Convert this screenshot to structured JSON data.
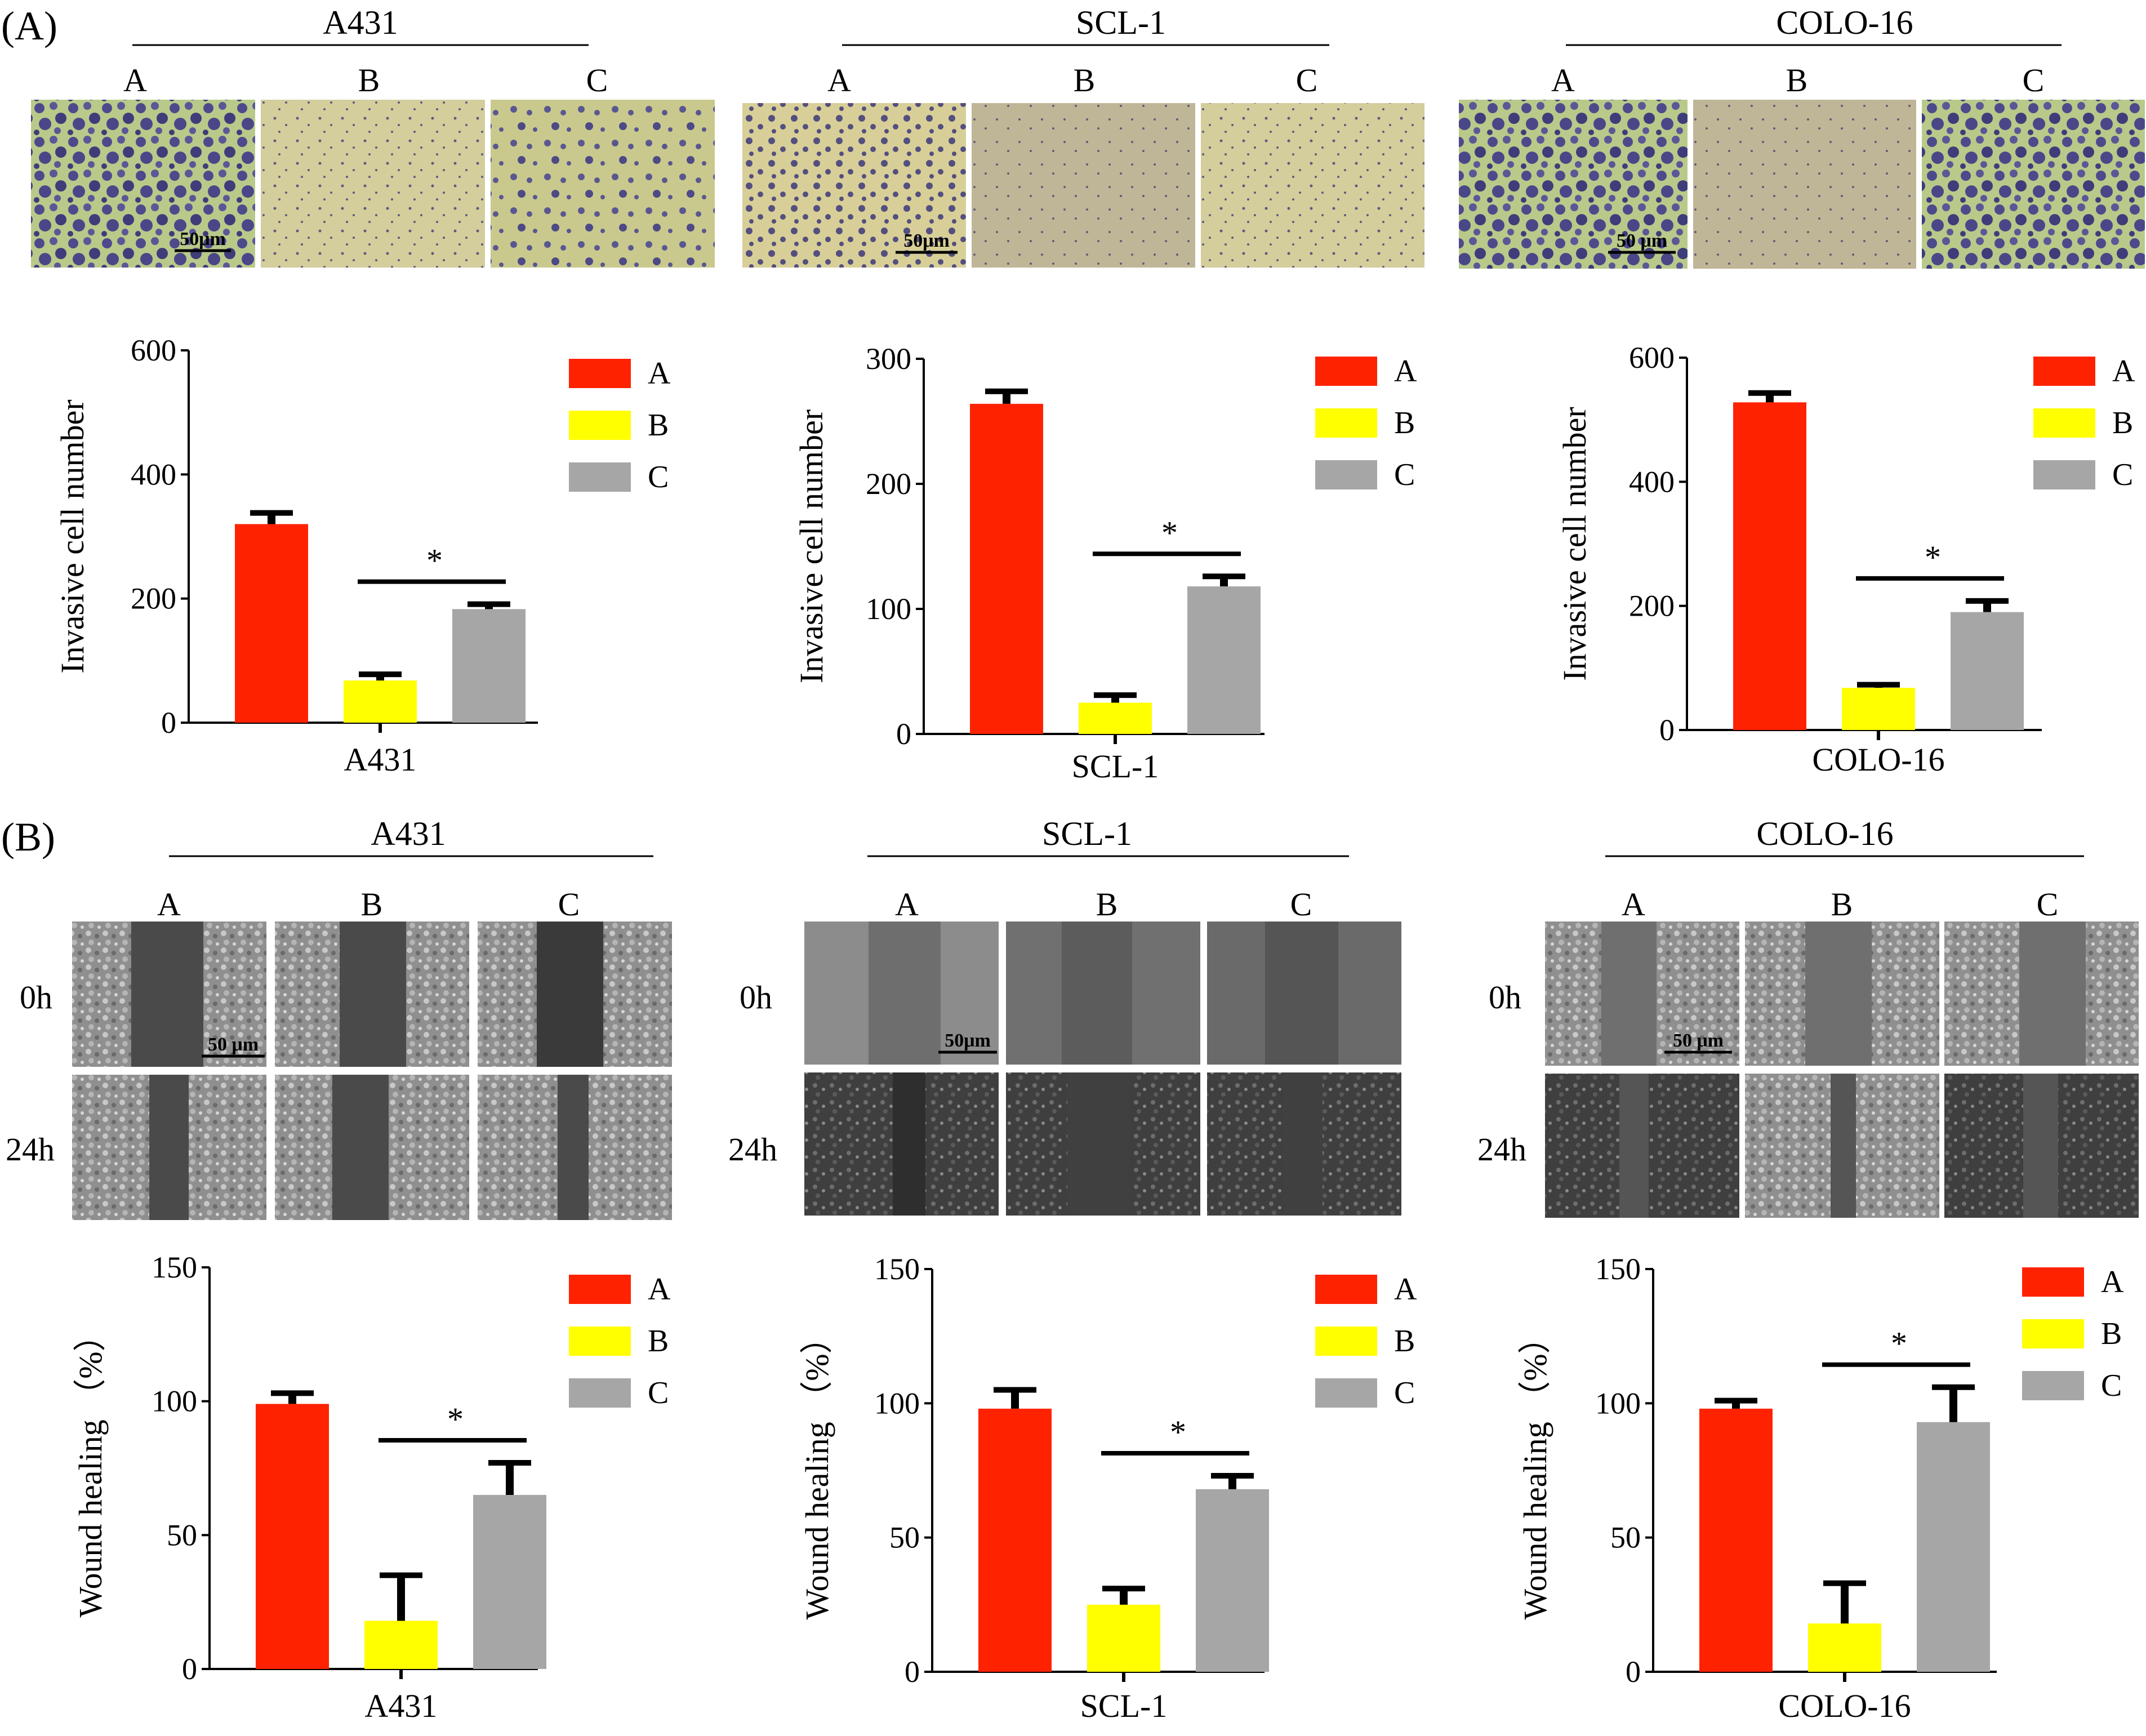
{
  "panels": [
    {
      "label": "(A)",
      "cell_lines": [
        {
          "title": "A431",
          "groups": [
            "A",
            "B",
            "C"
          ],
          "scale_bar": "50μm"
        },
        {
          "title": "SCL-1",
          "groups": [
            "A",
            "B",
            "C"
          ],
          "scale_bar": "50μm"
        },
        {
          "title": "COLO-16",
          "groups": [
            "A",
            "B",
            "C"
          ],
          "scale_bar": "50 μm"
        }
      ]
    },
    {
      "label": "(B)",
      "time_labels": [
        "0h",
        "24h"
      ],
      "cell_lines": [
        {
          "title": "A431",
          "groups": [
            "A",
            "B",
            "C"
          ],
          "scale_bar": "50 μm"
        },
        {
          "title": "SCL-1",
          "groups": [
            "A",
            "B",
            "C"
          ],
          "scale_bar": "50μm"
        },
        {
          "title": "COLO-16",
          "groups": [
            "A",
            "B",
            "C"
          ],
          "scale_bar": "50 μm"
        }
      ]
    }
  ],
  "legend": [
    "A",
    "B",
    "C"
  ],
  "colors": {
    "A": "#ff2200",
    "B": "#ffff00",
    "C": "#a6a6a6"
  },
  "chart_data": [
    {
      "type": "bar",
      "title": "",
      "xlabel": "A431",
      "ylabel": "Invasive cell number",
      "categories": [
        "A",
        "B",
        "C"
      ],
      "values": [
        320,
        68,
        183
      ],
      "errors": [
        18,
        10,
        8
      ],
      "ylim": [
        0,
        600
      ],
      "yticks": [
        0,
        200,
        400,
        600
      ],
      "significance": {
        "from": "B",
        "to": "C",
        "label": "*"
      },
      "legend": "top-right"
    },
    {
      "type": "bar",
      "title": "",
      "xlabel": "SCL-1",
      "ylabel": "Invasive cell number",
      "categories": [
        "A",
        "B",
        "C"
      ],
      "values": [
        264,
        25,
        118
      ],
      "errors": [
        10,
        6,
        8
      ],
      "ylim": [
        0,
        300
      ],
      "yticks": [
        0,
        100,
        200,
        300
      ],
      "significance": {
        "from": "B",
        "to": "C",
        "label": "*"
      },
      "legend": "top-right"
    },
    {
      "type": "bar",
      "title": "",
      "xlabel": "COLO-16",
      "ylabel": "Invasive cell number",
      "categories": [
        "A",
        "B",
        "C"
      ],
      "values": [
        528,
        68,
        190
      ],
      "errors": [
        15,
        5,
        18
      ],
      "ylim": [
        0,
        600
      ],
      "yticks": [
        0,
        200,
        400,
        600
      ],
      "significance": {
        "from": "B",
        "to": "C",
        "label": "*"
      },
      "legend": "top-right"
    },
    {
      "type": "bar",
      "title": "",
      "xlabel": "A431",
      "ylabel": "Wound healing （%）",
      "categories": [
        "A",
        "B",
        "C"
      ],
      "values": [
        99,
        18,
        65
      ],
      "errors": [
        4,
        17,
        12
      ],
      "ylim": [
        0,
        150
      ],
      "yticks": [
        0,
        50,
        100,
        150
      ],
      "significance": {
        "from": "B",
        "to": "C",
        "label": "*"
      },
      "legend": "top-right"
    },
    {
      "type": "bar",
      "title": "",
      "xlabel": "SCL-1",
      "ylabel": "Wound healing （%）",
      "categories": [
        "A",
        "B",
        "C"
      ],
      "values": [
        98,
        25,
        68
      ],
      "errors": [
        7,
        6,
        5
      ],
      "ylim": [
        0,
        150
      ],
      "yticks": [
        0,
        50,
        100,
        150
      ],
      "significance": {
        "from": "B",
        "to": "C",
        "label": "*"
      },
      "legend": "top-right"
    },
    {
      "type": "bar",
      "title": "",
      "xlabel": "COLO-16",
      "ylabel": "Wound healing （%）",
      "categories": [
        "A",
        "B",
        "C"
      ],
      "values": [
        98,
        18,
        93
      ],
      "errors": [
        3,
        15,
        13
      ],
      "ylim": [
        0,
        150
      ],
      "yticks": [
        0,
        50,
        100,
        150
      ],
      "significance": {
        "from": "B",
        "to": "C",
        "label": "*"
      },
      "legend": "top-right"
    }
  ]
}
